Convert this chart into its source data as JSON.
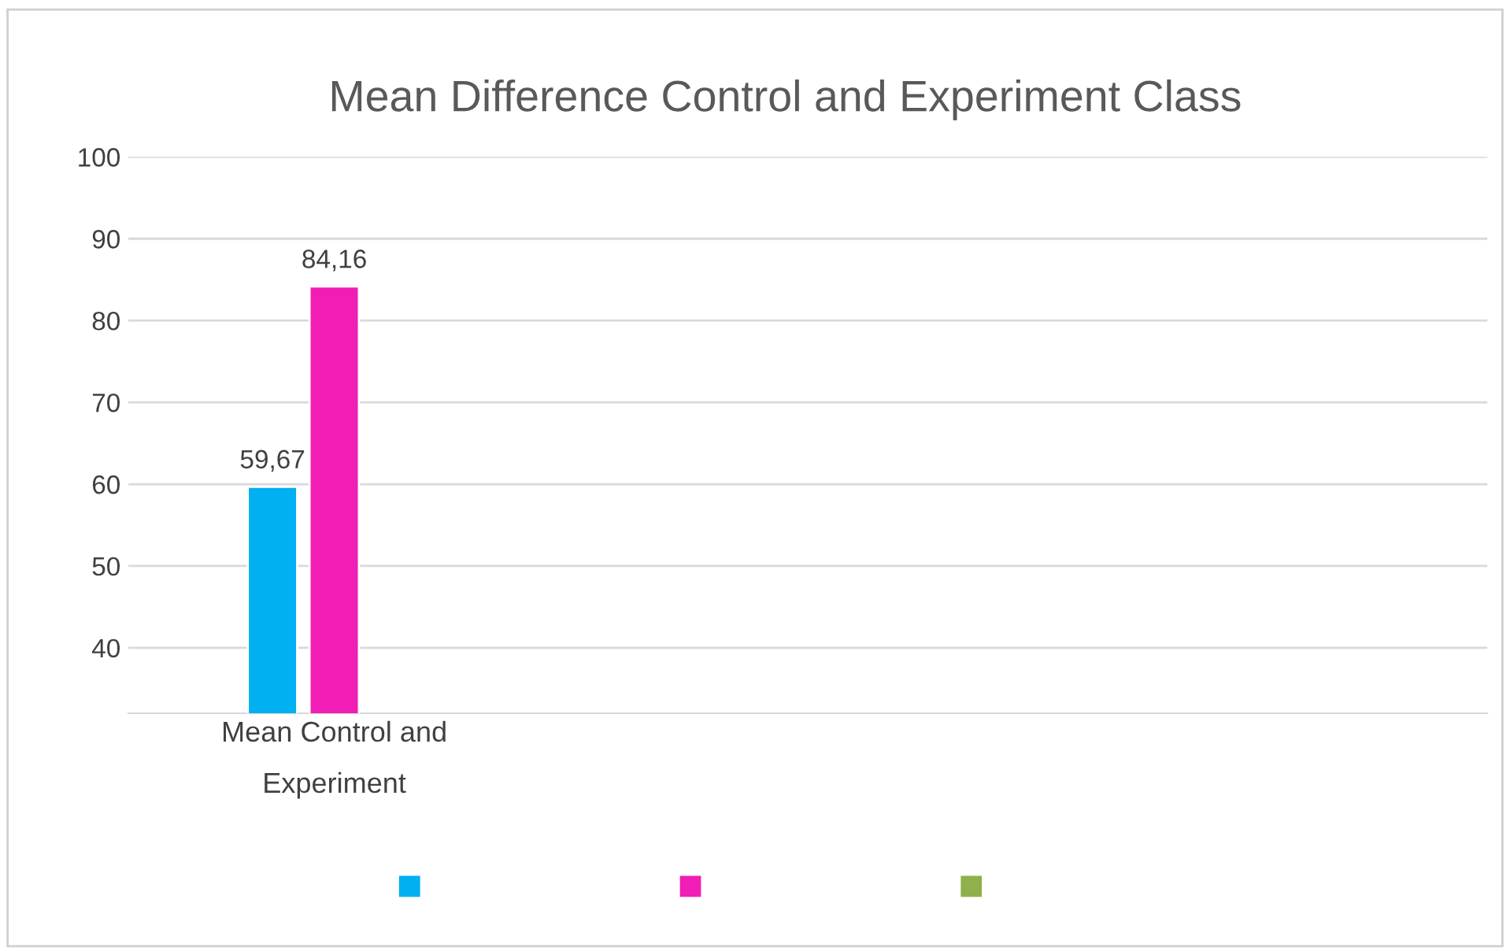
{
  "chart_data": {
    "type": "bar",
    "title": "Mean Difference Control and Experiment Class",
    "categories": [
      "Mean Control and\nExperiment"
    ],
    "series": [
      {
        "color": "#00b0f0",
        "values": [
          59.67
        ],
        "value_labels": [
          "59,67"
        ]
      },
      {
        "color": "#f01eb4",
        "values": [
          84.16
        ],
        "value_labels": [
          "84,16"
        ]
      },
      {
        "color": "#8fb04a",
        "values": [
          null
        ]
      }
    ],
    "ylim": [
      32,
      100
    ],
    "yticks": [
      40,
      50,
      60,
      70,
      80,
      90,
      100
    ],
    "grid": "y"
  }
}
